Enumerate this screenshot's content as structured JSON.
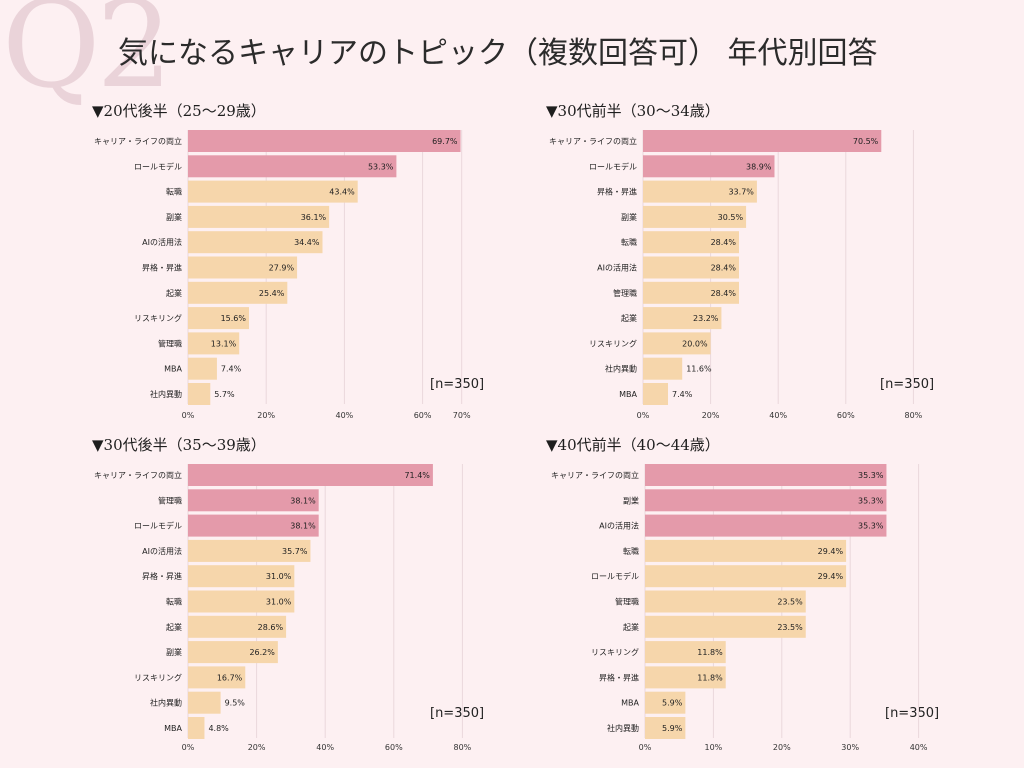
{
  "header": {
    "question_mark": "Q2",
    "title": "気になるキャリアのトピック（複数回答可） 年代別回答"
  },
  "colors": {
    "highlight_bar": "#e49aaa",
    "normal_bar": "#f6d6ab",
    "grid": "#ead8dc",
    "background": "#fdf0f2"
  },
  "chart_data": [
    {
      "type": "bar",
      "orientation": "horizontal",
      "title": "▼20代後半（25～29歳）",
      "n_label": "[n=350]",
      "categories": [
        "キャリア・ライフの両立",
        "ロールモデル",
        "転職",
        "副業",
        "AIの活用法",
        "昇格・昇進",
        "起業",
        "リスキリング",
        "管理職",
        "MBA",
        "社内異動"
      ],
      "values": [
        69.7,
        53.3,
        43.4,
        36.1,
        34.4,
        27.9,
        25.4,
        15.6,
        13.1,
        7.4,
        5.7
      ],
      "value_labels": [
        "69.7%",
        "53.3%",
        "43.4%",
        "36.1%",
        "34.4%",
        "27.9%",
        "25.4%",
        "15.6%",
        "13.1%",
        "7.4%",
        "5.7%"
      ],
      "highlighted": [
        true,
        true,
        false,
        false,
        false,
        false,
        false,
        false,
        false,
        false,
        false
      ],
      "ticks": [
        0,
        20,
        40,
        60,
        70
      ],
      "tick_labels": [
        "0%",
        "20%",
        "40%",
        "60%",
        "70%"
      ],
      "xlim": [
        0,
        70
      ]
    },
    {
      "type": "bar",
      "orientation": "horizontal",
      "title": "▼30代前半（30～34歳）",
      "n_label": "[n=350]",
      "categories": [
        "キャリア・ライフの両立",
        "ロールモデル",
        "昇格・昇進",
        "副業",
        "転職",
        "AIの活用法",
        "管理職",
        "起業",
        "リスキリング",
        "社内異動",
        "MBA"
      ],
      "values": [
        70.5,
        38.9,
        33.7,
        30.5,
        28.4,
        28.4,
        28.4,
        23.2,
        20.0,
        11.6,
        7.4
      ],
      "value_labels": [
        "70.5%",
        "38.9%",
        "33.7%",
        "30.5%",
        "28.4%",
        "28.4%",
        "28.4%",
        "23.2%",
        "20.0%",
        "11.6%",
        "7.4%"
      ],
      "highlighted": [
        true,
        true,
        false,
        false,
        false,
        false,
        false,
        false,
        false,
        false,
        false
      ],
      "ticks": [
        0,
        20,
        40,
        60,
        80
      ],
      "tick_labels": [
        "0%",
        "20%",
        "40%",
        "60%",
        "80%"
      ],
      "xlim": [
        0,
        82
      ]
    },
    {
      "type": "bar",
      "orientation": "horizontal",
      "title": "▼30代後半（35～39歳）",
      "n_label": "[n=350]",
      "categories": [
        "キャリア・ライフの両立",
        "管理職",
        "ロールモデル",
        "AIの活用法",
        "昇格・昇進",
        "転職",
        "起業",
        "副業",
        "リスキリング",
        "社内異動",
        "MBA"
      ],
      "values": [
        71.4,
        38.1,
        38.1,
        35.7,
        31.0,
        31.0,
        28.6,
        26.2,
        16.7,
        9.5,
        4.8
      ],
      "value_labels": [
        "71.4%",
        "38.1%",
        "38.1%",
        "35.7%",
        "31.0%",
        "31.0%",
        "28.6%",
        "26.2%",
        "16.7%",
        "9.5%",
        "4.8%"
      ],
      "highlighted": [
        true,
        true,
        true,
        false,
        false,
        false,
        false,
        false,
        false,
        false,
        false
      ],
      "ticks": [
        0,
        20,
        40,
        60,
        80
      ],
      "tick_labels": [
        "0%",
        "20%",
        "40%",
        "60%",
        "80%"
      ],
      "xlim": [
        0,
        82
      ]
    },
    {
      "type": "bar",
      "orientation": "horizontal",
      "title": "▼40代前半（40～44歳）",
      "n_label": "[n=350]",
      "categories": [
        "キャリア・ライフの両立",
        "副業",
        "AIの活用法",
        "転職",
        "ロールモデル",
        "管理職",
        "起業",
        "リスキリング",
        "昇格・昇進",
        "MBA",
        "社内異動"
      ],
      "values": [
        35.3,
        35.3,
        35.3,
        29.4,
        29.4,
        23.5,
        23.5,
        11.8,
        11.8,
        5.9,
        5.9
      ],
      "value_labels": [
        "35.3%",
        "35.3%",
        "35.3%",
        "29.4%",
        "29.4%",
        "23.5%",
        "23.5%",
        "11.8%",
        "11.8%",
        "5.9%",
        "5.9%"
      ],
      "highlighted": [
        true,
        true,
        true,
        false,
        false,
        false,
        false,
        false,
        false,
        false,
        false
      ],
      "ticks": [
        0,
        10,
        20,
        30,
        40
      ],
      "tick_labels": [
        "0%",
        "10%",
        "20%",
        "30%",
        "40%"
      ],
      "xlim": [
        0,
        41
      ]
    }
  ]
}
